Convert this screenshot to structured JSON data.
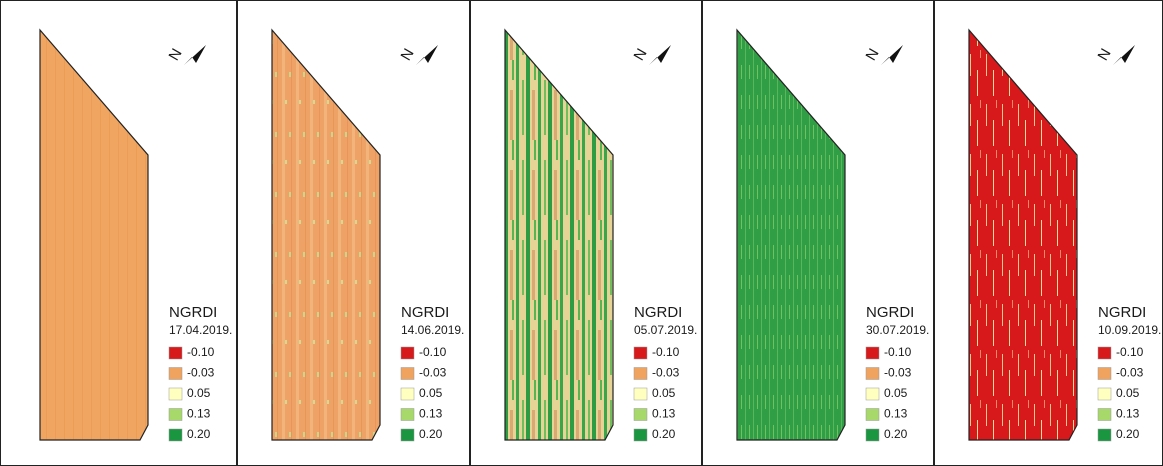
{
  "north": "N",
  "panels": [
    {
      "title": "NGRDI",
      "date": "17.04.2019."
    },
    {
      "title": "NGRDI",
      "date": "14.06.2019."
    },
    {
      "title": "NGRDI",
      "date": "05.07.2019."
    },
    {
      "title": "NGRDI",
      "date": "30.07.2019."
    },
    {
      "title": "NGRDI",
      "date": "10.09.2019."
    }
  ],
  "legend": [
    {
      "label": "-0.10",
      "color": "#d7191c"
    },
    {
      "label": "-0.03",
      "color": "#f0a35e"
    },
    {
      "label": "0.05",
      "color": "#ffffc0"
    },
    {
      "label": "0.13",
      "color": "#a6d96a"
    },
    {
      "label": "0.20",
      "color": "#1a9641"
    }
  ]
}
